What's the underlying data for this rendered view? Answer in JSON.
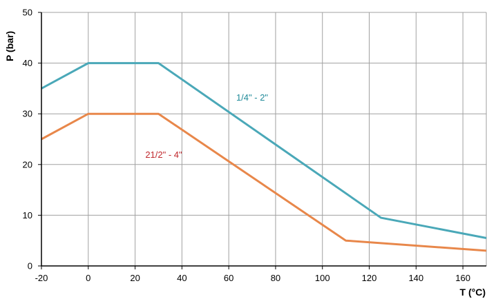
{
  "chart_data": {
    "type": "line",
    "title": "",
    "xlabel": "T (°C)",
    "ylabel": "P (bar)",
    "xlim": [
      -20,
      170
    ],
    "ylim": [
      0,
      50
    ],
    "xticks": [
      -20,
      0,
      20,
      40,
      60,
      80,
      100,
      120,
      140,
      160
    ],
    "yticks": [
      0,
      10,
      20,
      30,
      40,
      50
    ],
    "grid": true,
    "legend": "none",
    "series": [
      {
        "name": "1/4\" - 2\"",
        "color": "#4aa8b8",
        "label_color": "#1f8a99",
        "x": [
          -20,
          0,
          30,
          125,
          170
        ],
        "y": [
          35,
          40,
          40,
          9.5,
          5.5
        ]
      },
      {
        "name": "21/2\" - 4\"",
        "color": "#e8874a",
        "label_color": "#c0282d",
        "x": [
          -20,
          0,
          30,
          110,
          170
        ],
        "y": [
          25,
          30,
          30,
          5,
          3
        ]
      }
    ]
  }
}
